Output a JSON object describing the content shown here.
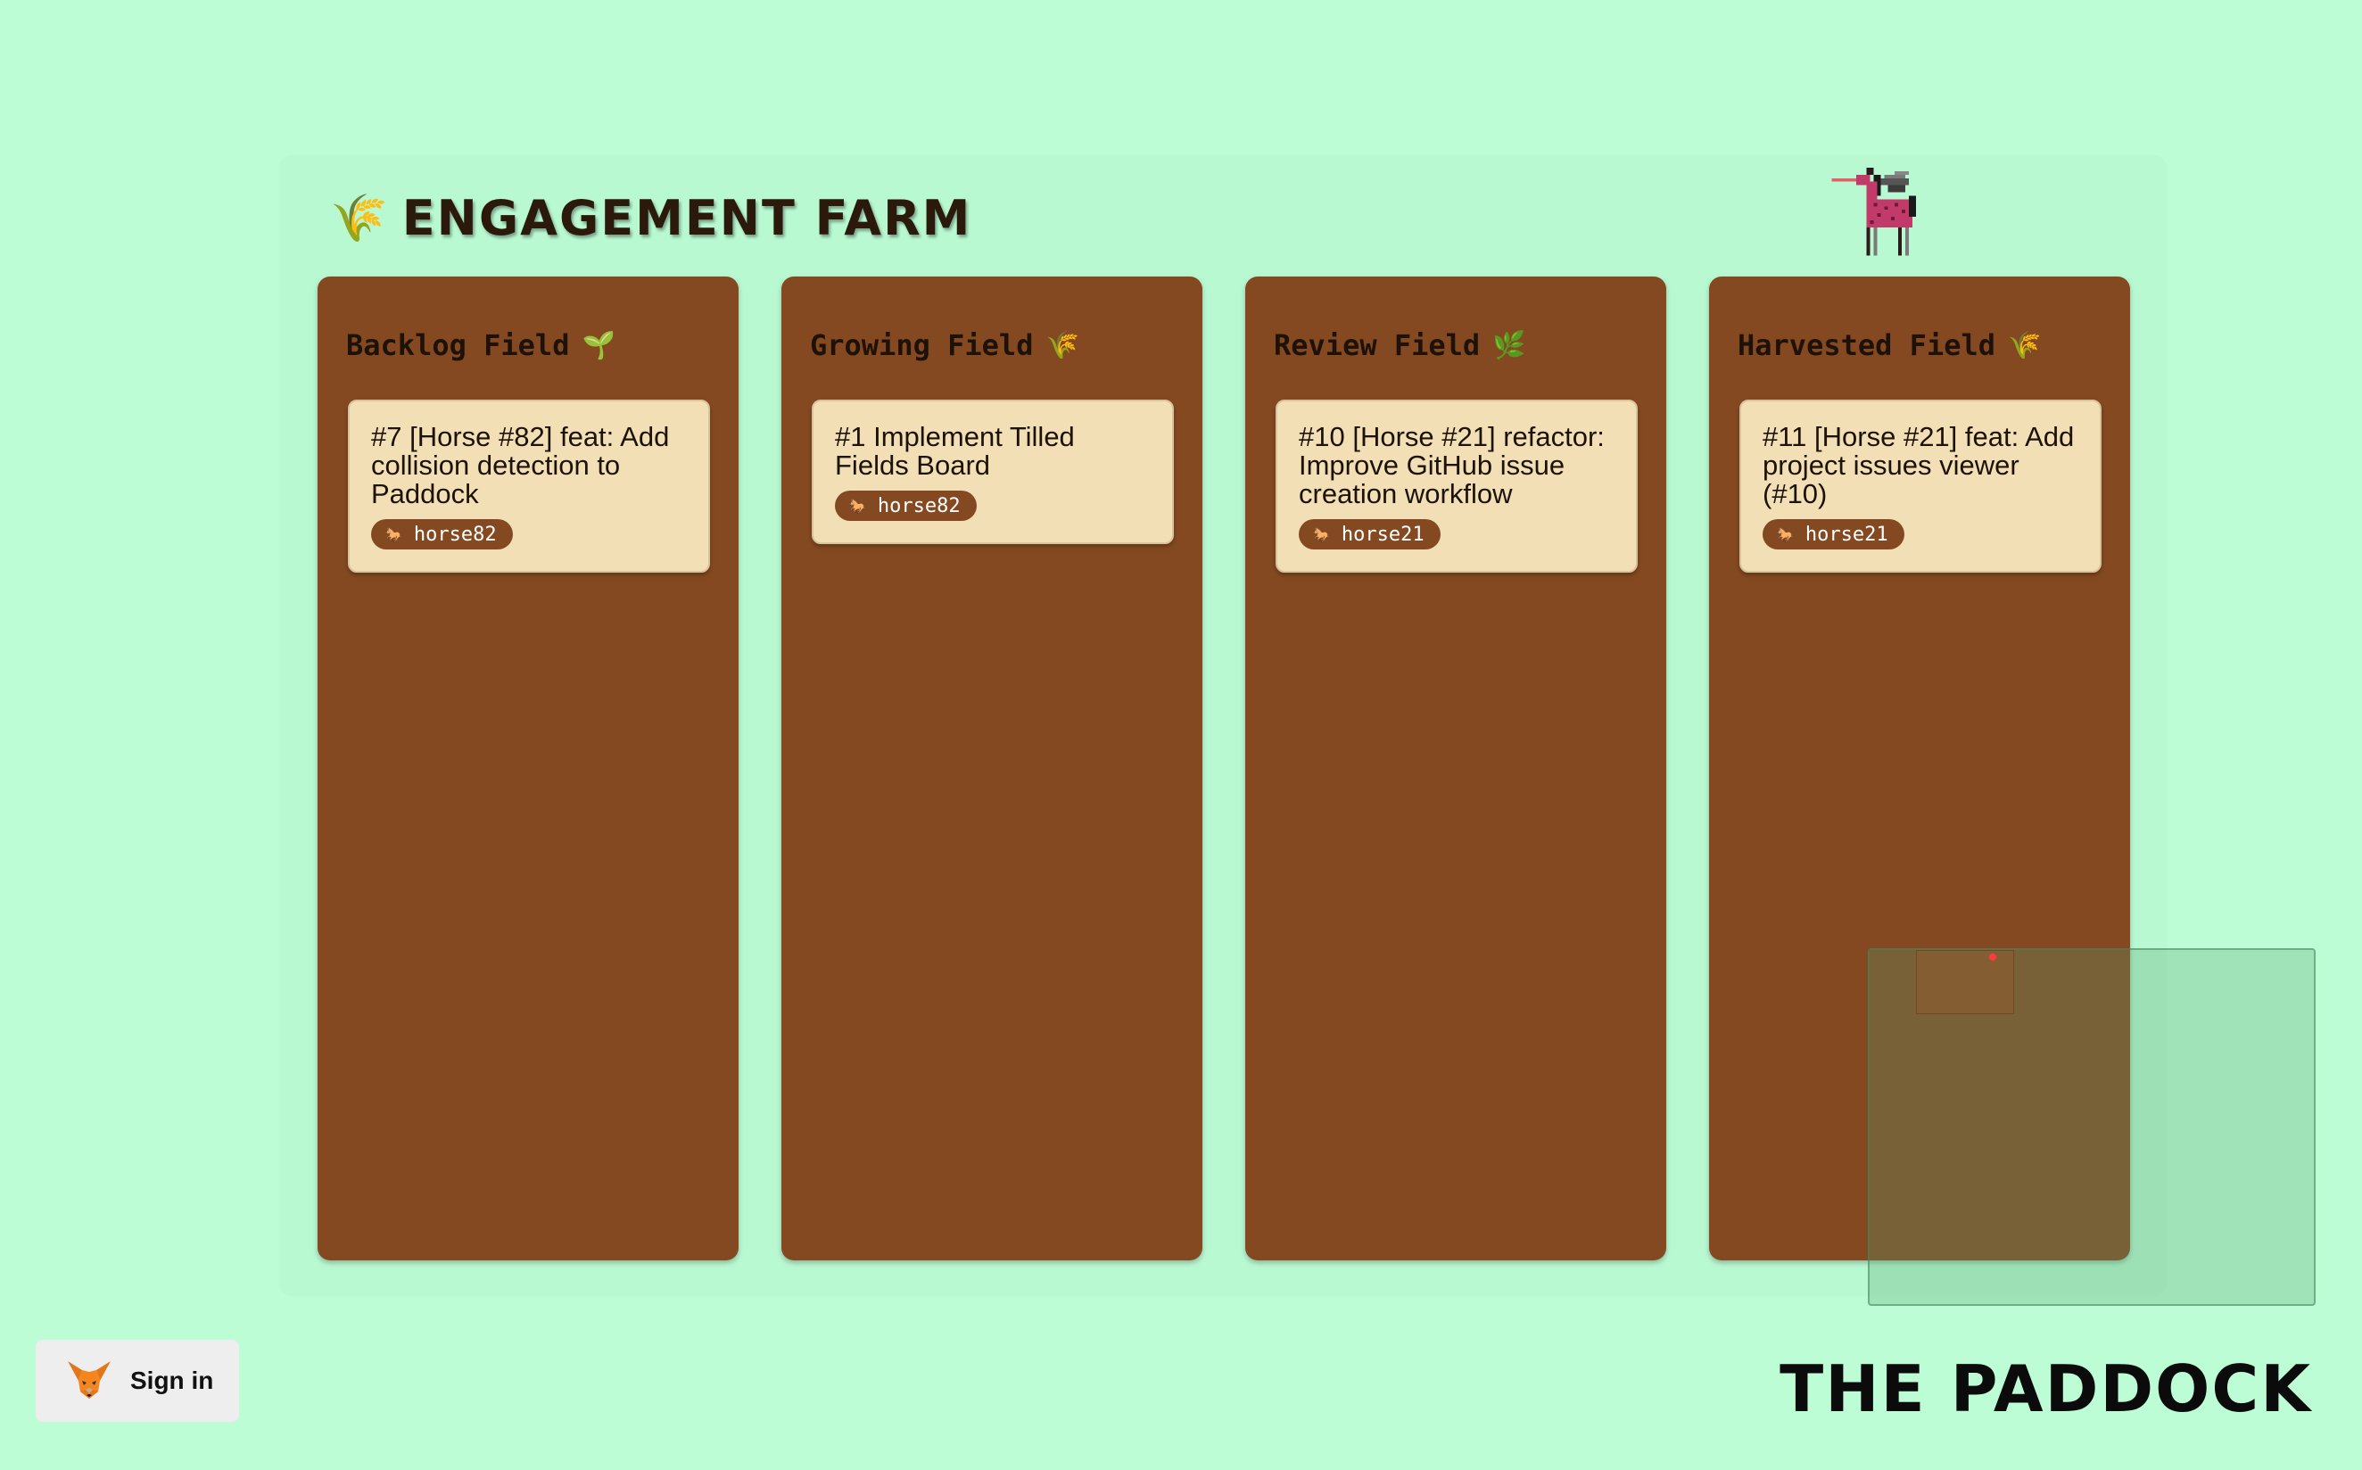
{
  "board": {
    "icon": "sheaf-of-rice-icon",
    "icon_glyph": "🌾",
    "title": "Engagement Farm"
  },
  "columns": [
    {
      "name": "Backlog Field",
      "emoji": "🌱",
      "cards": [
        {
          "title": "#7 [Horse #82] feat: Add collision detection to Paddock",
          "assignee": "horse82"
        }
      ]
    },
    {
      "name": "Growing Field",
      "emoji": "🌾",
      "cards": [
        {
          "title": "#1 Implement Tilled Fields Board",
          "assignee": "horse82"
        }
      ]
    },
    {
      "name": "Review Field",
      "emoji": "🌿",
      "cards": [
        {
          "title": "#10 [Horse #21] refactor: Improve GitHub issue creation workflow",
          "assignee": "horse21"
        }
      ]
    },
    {
      "name": "Harvested Field",
      "emoji": "🌾",
      "cards": [
        {
          "title": "#11 [Horse #21] feat: Add project issues viewer (#10)",
          "assignee": "horse21"
        }
      ]
    }
  ],
  "tag_icon": "horse-icon",
  "tag_glyph": "🐎",
  "sprite": {
    "name": "pixel-horse-icon"
  },
  "signin": {
    "label": "Sign in",
    "icon": "metamask-fox-icon"
  },
  "footer": {
    "brand": "The Paddock"
  },
  "colors": {
    "background": "#bdfdd6",
    "column": "#844921",
    "card": "#f3dfb6",
    "tag": "#844921"
  }
}
